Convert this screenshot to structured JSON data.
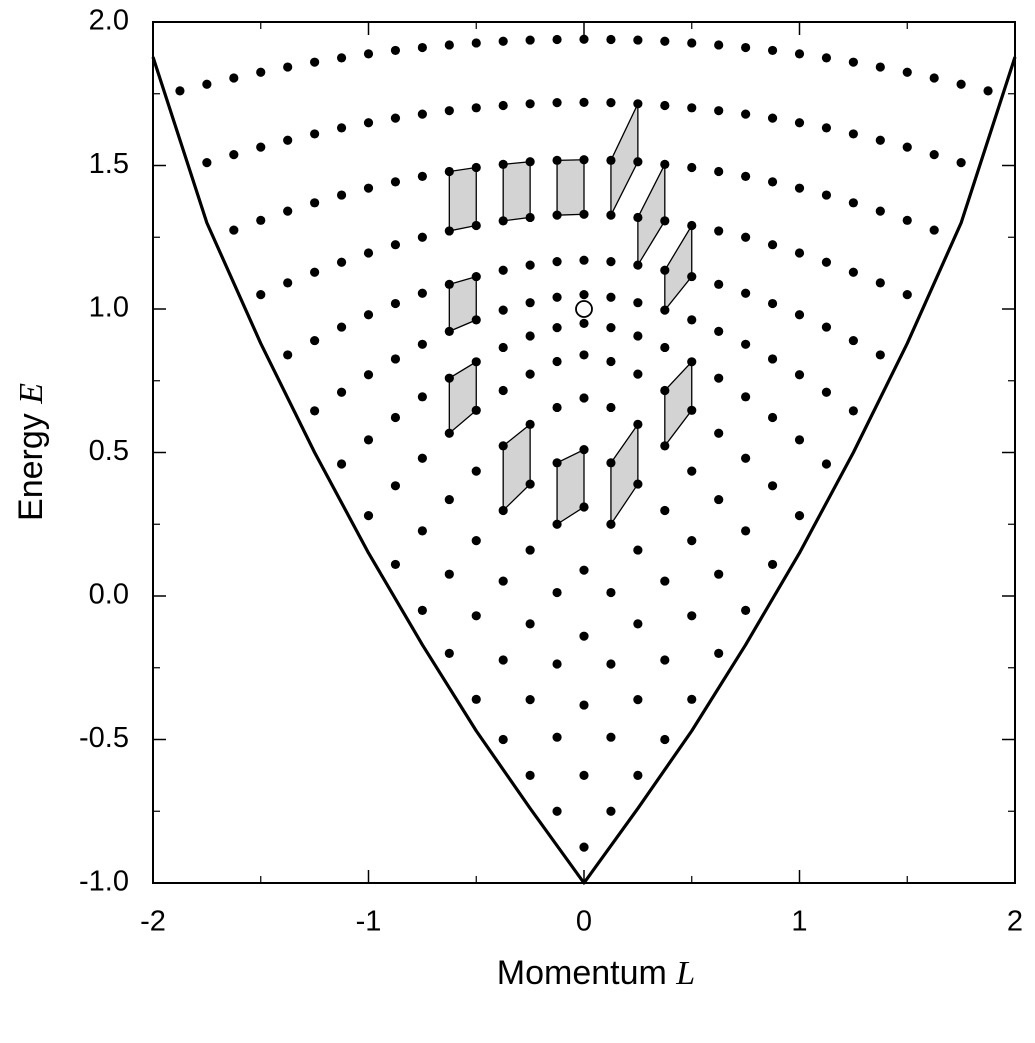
{
  "chart_data": {
    "type": "scatter",
    "xlabel": "Momentum",
    "xlabel_symbol": "L",
    "ylabel": "Energy",
    "ylabel_symbol": "E",
    "xlim": [
      -2,
      2
    ],
    "ylim": [
      -1,
      2
    ],
    "xticks": [
      -2,
      -1,
      0,
      1,
      2
    ],
    "xminorticks": [
      -1.5,
      -0.5,
      0.5,
      1.5
    ],
    "yticks": [
      {
        "value": -1,
        "label": "-1.0"
      },
      {
        "value": -0.5,
        "label": "-0.5"
      },
      {
        "value": 0,
        "label": "0.0"
      },
      {
        "value": 0.5,
        "label": "0.5"
      },
      {
        "value": 1,
        "label": "1.0"
      },
      {
        "value": 1.5,
        "label": "1.5"
      },
      {
        "value": 2,
        "label": "2.0"
      }
    ],
    "yminorticks": [
      -0.75,
      -0.25,
      0.25,
      0.75,
      1.25,
      1.75
    ],
    "color": "#000000",
    "patch_color": "#d3d3d3",
    "columns": [
      {
        "x": -1.875,
        "values": [
          1.76
        ]
      },
      {
        "x": -1.75,
        "values": [
          1.51,
          1.783
        ]
      },
      {
        "x": -1.625,
        "values": [
          1.275,
          1.538,
          1.805
        ]
      },
      {
        "x": -1.5,
        "values": [
          1.05,
          1.309,
          1.564,
          1.825
        ]
      },
      {
        "x": -1.375,
        "values": [
          0.84,
          1.091,
          1.341,
          1.588,
          1.843
        ]
      },
      {
        "x": -1.25,
        "values": [
          0.645,
          0.89,
          1.128,
          1.37,
          1.61,
          1.86
        ]
      },
      {
        "x": -1.125,
        "values": [
          0.46,
          0.71,
          0.937,
          1.163,
          1.397,
          1.631,
          1.875
        ]
      },
      {
        "x": -1,
        "values": [
          0.28,
          0.544,
          0.771,
          0.98,
          1.195,
          1.421,
          1.649,
          1.889
        ]
      },
      {
        "x": -0.875,
        "values": [
          0.11,
          0.384,
          0.622,
          0.826,
          1.019,
          1.224,
          1.443,
          1.665,
          1.901
        ]
      },
      {
        "x": -0.75,
        "values": [
          -0.05,
          0.227,
          0.48,
          0.694,
          0.877,
          1.055,
          1.25,
          1.462,
          1.679,
          1.911
        ]
      },
      {
        "x": -0.625,
        "values": [
          -0.2,
          0.076,
          0.336,
          0.567,
          0.759,
          0.922,
          1.086,
          1.272,
          1.479,
          1.691,
          1.92
        ]
      },
      {
        "x": -0.5,
        "values": [
          -0.36,
          -0.069,
          0.193,
          0.435,
          0.647,
          0.816,
          0.962,
          1.113,
          1.291,
          1.493,
          1.701,
          1.927
        ]
      },
      {
        "x": -0.375,
        "values": [
          -0.5,
          -0.223,
          0.052,
          0.298,
          0.523,
          0.716,
          0.866,
          0.996,
          1.135,
          1.307,
          1.504,
          1.709,
          1.933
        ]
      },
      {
        "x": -0.25,
        "values": [
          -0.625,
          -0.361,
          -0.097,
          0.16,
          0.39,
          0.598,
          0.773,
          0.906,
          1.022,
          1.153,
          1.319,
          1.513,
          1.715,
          1.937
        ]
      },
      {
        "x": -0.125,
        "values": [
          -0.75,
          -0.492,
          -0.237,
          0.012,
          0.25,
          0.464,
          0.657,
          0.817,
          0.935,
          1.041,
          1.165,
          1.327,
          1.518,
          1.719,
          1.939
        ]
      },
      {
        "x": 0,
        "values": [
          -0.875,
          -0.625,
          -0.38,
          -0.14,
          0.09,
          0.31,
          0.51,
          0.69,
          0.84,
          0.95,
          1.05,
          1.17,
          1.33,
          1.52,
          1.72,
          1.94
        ]
      },
      {
        "x": 0.125,
        "values": [
          -0.75,
          -0.492,
          -0.237,
          0.012,
          0.25,
          0.464,
          0.657,
          0.817,
          0.935,
          1.041,
          1.165,
          1.327,
          1.518,
          1.719,
          1.939
        ]
      },
      {
        "x": 0.25,
        "values": [
          -0.625,
          -0.361,
          -0.097,
          0.16,
          0.39,
          0.598,
          0.773,
          0.906,
          1.022,
          1.153,
          1.319,
          1.513,
          1.715,
          1.937
        ]
      },
      {
        "x": 0.375,
        "values": [
          -0.5,
          -0.223,
          0.052,
          0.298,
          0.523,
          0.716,
          0.866,
          0.996,
          1.135,
          1.307,
          1.504,
          1.709,
          1.933
        ]
      },
      {
        "x": 0.5,
        "values": [
          -0.36,
          -0.069,
          0.193,
          0.435,
          0.647,
          0.816,
          0.962,
          1.113,
          1.291,
          1.493,
          1.701,
          1.927
        ]
      },
      {
        "x": 0.625,
        "values": [
          -0.2,
          0.076,
          0.336,
          0.567,
          0.759,
          0.922,
          1.086,
          1.272,
          1.479,
          1.691,
          1.92
        ]
      },
      {
        "x": 0.75,
        "values": [
          -0.05,
          0.227,
          0.48,
          0.694,
          0.877,
          1.055,
          1.25,
          1.462,
          1.679,
          1.911
        ]
      },
      {
        "x": 0.875,
        "values": [
          0.11,
          0.384,
          0.622,
          0.826,
          1.019,
          1.224,
          1.443,
          1.665,
          1.901
        ]
      },
      {
        "x": 1,
        "values": [
          0.28,
          0.544,
          0.771,
          0.98,
          1.195,
          1.421,
          1.649,
          1.889
        ]
      },
      {
        "x": 1.125,
        "values": [
          0.46,
          0.71,
          0.937,
          1.163,
          1.397,
          1.631,
          1.875
        ]
      },
      {
        "x": 1.25,
        "values": [
          0.645,
          0.89,
          1.128,
          1.37,
          1.61,
          1.86
        ]
      },
      {
        "x": 1.375,
        "values": [
          0.84,
          1.091,
          1.341,
          1.588,
          1.843
        ]
      },
      {
        "x": 1.5,
        "values": [
          1.05,
          1.309,
          1.564,
          1.825
        ]
      },
      {
        "x": 1.625,
        "values": [
          1.275,
          1.538,
          1.805
        ]
      },
      {
        "x": 1.75,
        "values": [
          1.51,
          1.783
        ]
      },
      {
        "x": 1.875,
        "values": [
          1.76
        ]
      }
    ],
    "boundary": {
      "x": [
        -2,
        -1.75,
        -1.5,
        -1.25,
        -1,
        -0.75,
        -0.5,
        -0.25,
        0,
        0.25,
        0.5,
        0.75,
        1,
        1.25,
        1.5,
        1.75,
        2
      ],
      "values": [
        1.878,
        1.3,
        0.88,
        0.5,
        0.15,
        -0.17,
        -0.47,
        -0.74,
        -1,
        -0.74,
        -0.47,
        -0.17,
        0.15,
        0.5,
        0.88,
        1.3,
        1.878
      ]
    },
    "marker": {
      "x": 0,
      "y": 1
    }
  }
}
